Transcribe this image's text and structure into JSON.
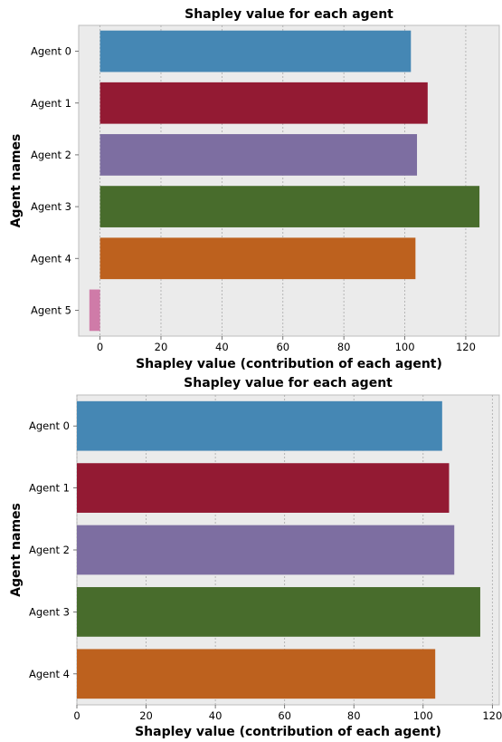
{
  "chart_data": [
    {
      "type": "bar",
      "orientation": "horizontal",
      "title": "Shapley value for each agent",
      "xlabel": "Shapley value (contribution of each agent)",
      "ylabel": "Agent names",
      "categories": [
        "Agent 0",
        "Agent 1",
        "Agent 2",
        "Agent 3",
        "Agent 4",
        "Agent 5"
      ],
      "values": [
        102,
        107.5,
        104,
        124.5,
        103.5,
        -3.5
      ],
      "colors": [
        "#4587b4",
        "#931a33",
        "#7d6ea1",
        "#486c2c",
        "#bd611e",
        "#cf7ba8"
      ],
      "xlim": [
        -7,
        131
      ],
      "xticks": [
        0,
        20,
        40,
        60,
        80,
        100,
        120
      ],
      "grid": true
    },
    {
      "type": "bar",
      "orientation": "horizontal",
      "title": "Shapley value for each agent",
      "xlabel": "Shapley value (contribution of each agent)",
      "ylabel": "Agent names",
      "categories": [
        "Agent 0",
        "Agent 1",
        "Agent 2",
        "Agent 3",
        "Agent 4"
      ],
      "values": [
        105.5,
        107.5,
        109,
        116.5,
        103.5
      ],
      "colors": [
        "#4587b4",
        "#931a33",
        "#7d6ea1",
        "#486c2c",
        "#bd611e"
      ],
      "xlim": [
        0,
        122
      ],
      "xticks": [
        0,
        20,
        40,
        60,
        80,
        100,
        120
      ],
      "grid": true
    }
  ]
}
